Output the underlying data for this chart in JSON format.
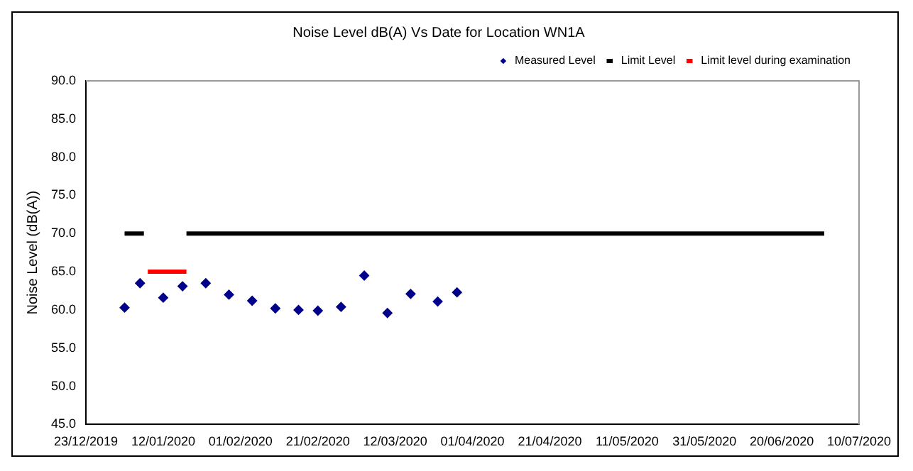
{
  "chart_data": {
    "type": "scatter",
    "title": "Noise Level dB(A) Vs Date for Location WN1A",
    "ylabel": "Noise Level (dB(A))",
    "xlim": [
      "2019-12-23",
      "2020-07-10"
    ],
    "xticks": [
      {
        "value": "2019-12-23",
        "label": "23/12/2019"
      },
      {
        "value": "2020-01-12",
        "label": "12/01/2020"
      },
      {
        "value": "2020-02-01",
        "label": "01/02/2020"
      },
      {
        "value": "2020-02-21",
        "label": "21/02/2020"
      },
      {
        "value": "2020-03-12",
        "label": "12/03/2020"
      },
      {
        "value": "2020-04-01",
        "label": "01/04/2020"
      },
      {
        "value": "2020-04-21",
        "label": "21/04/2020"
      },
      {
        "value": "2020-05-11",
        "label": "11/05/2020"
      },
      {
        "value": "2020-05-31",
        "label": "31/05/2020"
      },
      {
        "value": "2020-06-20",
        "label": "20/06/2020"
      },
      {
        "value": "2020-07-10",
        "label": "10/07/2020"
      }
    ],
    "ylim": [
      45,
      90
    ],
    "yticks": [
      {
        "value": 45,
        "label": "45.0"
      },
      {
        "value": 50,
        "label": "50.0"
      },
      {
        "value": 55,
        "label": "55.0"
      },
      {
        "value": 60,
        "label": "60.0"
      },
      {
        "value": 65,
        "label": "65.0"
      },
      {
        "value": 70,
        "label": "70.0"
      },
      {
        "value": 75,
        "label": "75.0"
      },
      {
        "value": 80,
        "label": "80.0"
      },
      {
        "value": 85,
        "label": "85.0"
      },
      {
        "value": 90,
        "label": "90.0"
      }
    ],
    "grid": false,
    "legend": "top right",
    "series": [
      {
        "name": "Measured Level",
        "type": "scatter",
        "marker": "diamond",
        "color": "#00008b",
        "x": [
          "2020-01-02",
          "2020-01-06",
          "2020-01-12",
          "2020-01-17",
          "2020-01-23",
          "2020-01-29",
          "2020-02-04",
          "2020-02-10",
          "2020-02-16",
          "2020-02-21",
          "2020-02-27",
          "2020-03-04",
          "2020-03-10",
          "2020-03-16",
          "2020-03-23",
          "2020-03-28"
        ],
        "values": [
          60.3,
          63.5,
          61.6,
          63.1,
          63.5,
          62.0,
          61.2,
          60.2,
          60.0,
          59.9,
          60.4,
          64.5,
          59.6,
          62.1,
          61.1,
          62.3
        ]
      },
      {
        "name": "Limit Level",
        "type": "line",
        "marker": "none",
        "line_style": "solid",
        "color": "#000000",
        "x": [
          "2020-01-02",
          "2020-01-07",
          "2020-01-12",
          "2020-01-18",
          "2020-07-01"
        ],
        "values": [
          70,
          70,
          null,
          70,
          70
        ]
      },
      {
        "name": "Limit level during examination",
        "type": "line",
        "marker": "none",
        "line_style": "solid",
        "color": "#ff0000",
        "x": [
          "2020-01-08",
          "2020-01-18"
        ],
        "values": [
          65,
          65
        ]
      }
    ]
  }
}
